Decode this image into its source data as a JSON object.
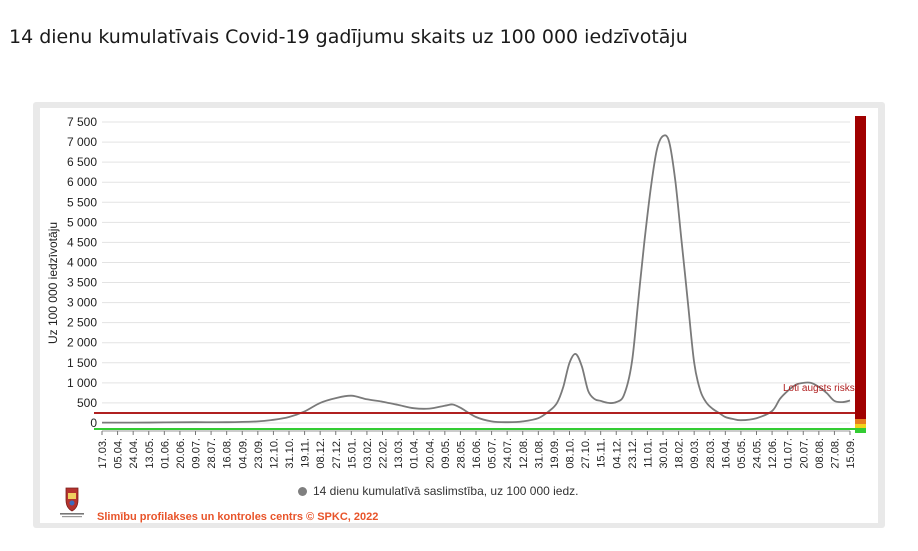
{
  "page": {
    "title": "14 dienu kumulatīvais Covid-19 gadījumu skaits uz 100 000 iedzīvotāju"
  },
  "footer": {
    "legend_label": "14 dienu kumulatīvā saslimstība, uz 100 000 iedz.",
    "credit": "Slimību profilakses un kontroles centrs © SPKC, 2022"
  },
  "colors": {
    "line": "#7a7a7a",
    "risk_red": "#b02020",
    "risk_green": "#33cc33",
    "risk_bar": "#a00000",
    "grid": "#e3e3e3",
    "credit": "#e8542a"
  },
  "chart_data": {
    "type": "line",
    "title": "",
    "ylabel": "Uz 100 000 iedzīvotāju",
    "xlabel": "",
    "ylim": [
      0,
      7500
    ],
    "yticks": [
      0,
      500,
      1000,
      1500,
      2000,
      2500,
      3000,
      3500,
      4000,
      4500,
      5000,
      5500,
      6000,
      6500,
      7000,
      7500
    ],
    "ytick_labels": [
      "0",
      "500",
      "1 000",
      "1 500",
      "2 000",
      "2 500",
      "3 000",
      "3 500",
      "4 000",
      "4 500",
      "5 000",
      "5 500",
      "6 000",
      "6 500",
      "7 000",
      "7 500"
    ],
    "xtick_labels": [
      "17.03.",
      "05.04.",
      "24.04.",
      "13.05.",
      "01.06.",
      "20.06.",
      "09.07.",
      "28.07.",
      "16.08.",
      "04.09.",
      "23.09.",
      "12.10.",
      "31.10.",
      "19.11.",
      "08.12.",
      "27.12.",
      "15.01.",
      "03.02.",
      "22.02.",
      "13.03.",
      "01.04.",
      "20.04.",
      "09.05.",
      "28.05.",
      "16.06.",
      "05.07.",
      "24.07.",
      "12.08.",
      "31.08.",
      "19.09.",
      "08.10.",
      "27.10.",
      "15.11.",
      "04.12.",
      "23.12.",
      "11.01.",
      "30.01.",
      "18.02.",
      "09.03.",
      "28.03.",
      "16.04.",
      "05.05.",
      "24.05.",
      "12.06.",
      "01.07.",
      "20.07.",
      "08.08.",
      "27.08.",
      "15.09."
    ],
    "series": [
      {
        "x_index": [
          0,
          2,
          4,
          6,
          8,
          10,
          11,
          12,
          13,
          14,
          15,
          16,
          17,
          18,
          19,
          20,
          21,
          22,
          22.5,
          23,
          24,
          25,
          26,
          27,
          28,
          28.7,
          29.2,
          29.6,
          30,
          30.4,
          30.8,
          31.2,
          31.6,
          32,
          32.5,
          33,
          33.5,
          34,
          34.4,
          34.8,
          35.2,
          35.6,
          36,
          36.4,
          36.8,
          37.2,
          37.6,
          38,
          38.4,
          38.8,
          39.2,
          39.6,
          40,
          40.5,
          41,
          42,
          43,
          43.5,
          44,
          44.5,
          45,
          45.5,
          46,
          46.5,
          47,
          47.5,
          48
        ],
        "values": [
          10,
          10,
          15,
          20,
          20,
          40,
          80,
          150,
          290,
          500,
          620,
          680,
          590,
          530,
          450,
          370,
          360,
          430,
          460,
          380,
          150,
          40,
          20,
          40,
          120,
          300,
          500,
          900,
          1500,
          1720,
          1400,
          800,
          600,
          550,
          500,
          520,
          700,
          1500,
          3000,
          4500,
          5800,
          6800,
          7150,
          7000,
          6000,
          4500,
          3000,
          1500,
          800,
          500,
          350,
          250,
          150,
          100,
          70,
          120,
          300,
          600,
          800,
          950,
          1000,
          1000,
          900,
          750,
          550,
          520,
          560
        ]
      }
    ],
    "annotations": [
      {
        "text": "Loti augsts risks",
        "value": 200
      }
    ],
    "thresholds": {
      "red": 200,
      "green": 20
    },
    "grid": true,
    "legend": "bottom"
  }
}
